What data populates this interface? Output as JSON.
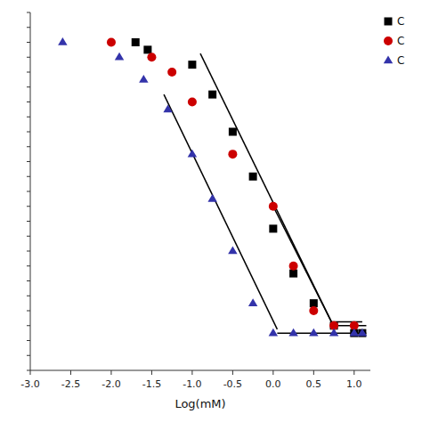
{
  "chart_data": {
    "type": "scatter",
    "xlabel": "Log(mM)",
    "xlim": [
      -3.0,
      1.2
    ],
    "ylim": [
      28,
      76
    ],
    "xticks": [
      {
        "value": -3.0,
        "label": "-3.0"
      },
      -2.5,
      {
        "value": -2.0,
        "label": "-2.0"
      },
      -1.5,
      {
        "value": -1.0,
        "label": "-1.0"
      },
      -0.5,
      {
        "value": 0.0,
        "label": "0.0"
      },
      0.5,
      {
        "value": 1.0,
        "label": "1.0"
      }
    ],
    "yticks": [
      28,
      30,
      32,
      34,
      36,
      38,
      40,
      42,
      44,
      46,
      48,
      50,
      52,
      54,
      56,
      58,
      60,
      62,
      64,
      66,
      68,
      70,
      72,
      74,
      76
    ],
    "tick_labels": "x",
    "grid": false,
    "legend": "upper right",
    "series": [
      {
        "type": "scatter",
        "name": "C",
        "color": "#000000",
        "marker": "square",
        "x": [
          -1.7,
          -1.55,
          -1.0,
          -0.75,
          -0.5,
          -0.25,
          0.0,
          0.25,
          0.5,
          0.75,
          1.0,
          1.1
        ],
        "values": [
          72,
          71,
          69,
          65,
          60,
          54,
          47,
          41,
          37,
          34,
          33,
          33
        ]
      },
      {
        "type": "line",
        "color": "#000000",
        "x": [
          -0.9,
          0.72
        ],
        "values": [
          70.5,
          34.5
        ]
      },
      {
        "type": "line",
        "color": "#000000",
        "x": [
          0.72,
          1.15
        ],
        "values": [
          34.0,
          34.0
        ]
      },
      {
        "type": "scatter",
        "name": "C",
        "color": "#cc0000",
        "marker": "circle",
        "x": [
          -2.0,
          -1.5,
          -1.25,
          -1.0,
          -0.5,
          0.0,
          0.25,
          0.5,
          0.75,
          1.0
        ],
        "values": [
          72,
          70,
          68,
          64,
          57,
          50,
          42,
          36,
          34,
          34
        ]
      },
      {
        "type": "line",
        "color": "#000000",
        "x": [
          0.0,
          0.72
        ],
        "values": [
          50.0,
          34.5
        ]
      },
      {
        "type": "line",
        "color": "#000000",
        "x": [
          0.72,
          1.1
        ],
        "values": [
          34.5,
          34.5
        ]
      },
      {
        "type": "scatter",
        "name": "C",
        "color": "#3333aa",
        "marker": "triangle",
        "x": [
          -2.6,
          -1.9,
          -1.6,
          -1.3,
          -1.0,
          -0.75,
          -0.5,
          -0.25,
          0.0,
          0.25,
          0.5,
          0.75,
          1.0,
          1.1
        ],
        "values": [
          72,
          70,
          67,
          63,
          57,
          51,
          44,
          37,
          33,
          33,
          33,
          33,
          33,
          33
        ]
      },
      {
        "type": "line",
        "color": "#000000",
        "x": [
          -1.35,
          0.05
        ],
        "values": [
          65.0,
          33.5
        ]
      },
      {
        "type": "line",
        "color": "#000000",
        "x": [
          0.05,
          1.15
        ],
        "values": [
          33.0,
          33.0
        ]
      }
    ]
  }
}
